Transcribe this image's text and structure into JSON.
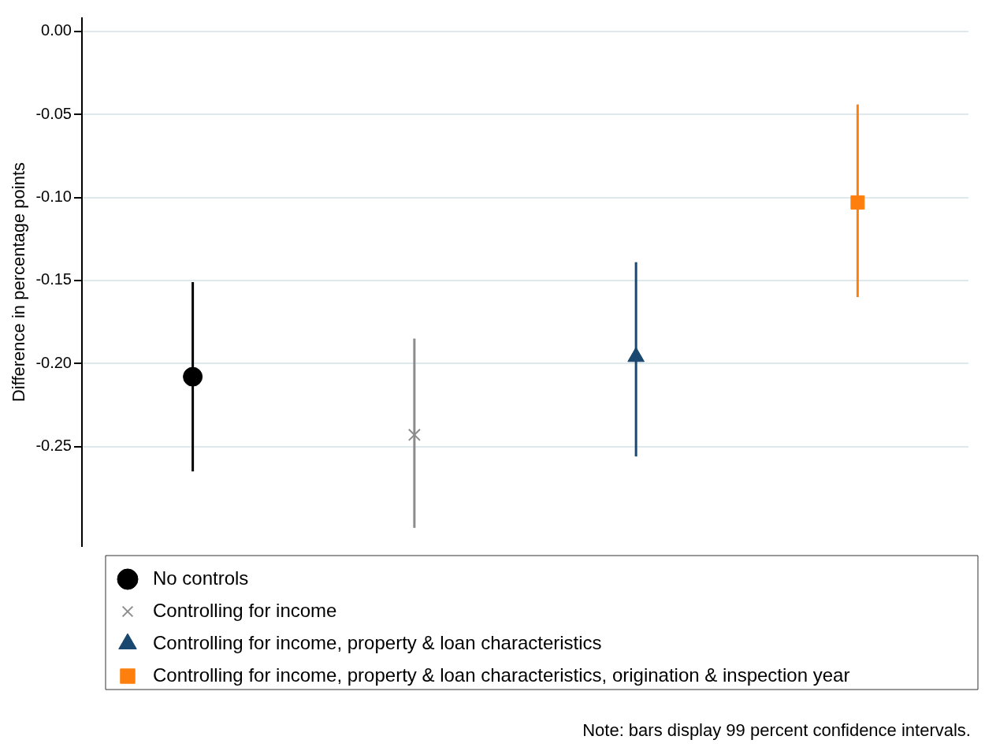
{
  "chart_data": {
    "type": "scatter",
    "ylabel": "Difference in percentage points",
    "categories": [
      null,
      null,
      null,
      null
    ],
    "ylim": [
      -0.31,
      0.008
    ],
    "yticks": [
      {
        "value": 0,
        "label": "0.00"
      },
      {
        "value": -0.05,
        "label": "-0.05"
      },
      {
        "value": -0.1,
        "label": "-0.10"
      },
      {
        "value": -0.15,
        "label": "-0.15"
      },
      {
        "value": -0.2,
        "label": "-0.20"
      },
      {
        "value": -0.25,
        "label": "-0.25"
      }
    ],
    "grid": "y",
    "legend": "bottom",
    "annotations": [
      "Note: bars display 99 percent confidence intervals."
    ],
    "series": [
      {
        "name": "No controls",
        "color": "#000000",
        "marker": "circle",
        "values": [
          -0.208,
          null,
          null,
          null
        ],
        "errors": [
          [
            -0.265,
            -0.151
          ],
          null,
          null,
          null
        ]
      },
      {
        "name": "Controlling for income",
        "color": "#8c8c8c",
        "marker": "cross",
        "values": [
          null,
          -0.243,
          null,
          null
        ],
        "errors": [
          null,
          [
            -0.299,
            -0.185
          ],
          null,
          null
        ]
      },
      {
        "name": "Controlling for income, property & loan characteristics",
        "color": "#1a476f",
        "marker": "triangle",
        "values": [
          null,
          null,
          -0.196,
          null
        ],
        "errors": [
          null,
          null,
          [
            -0.256,
            -0.139
          ],
          null
        ]
      },
      {
        "name": "Controlling for income, property & loan characteristics, origination & inspection year",
        "color": "#ff7f0e",
        "marker": "square",
        "values": [
          null,
          null,
          null,
          -0.103
        ],
        "errors": [
          null,
          null,
          null,
          [
            -0.16,
            -0.044
          ]
        ]
      }
    ]
  }
}
